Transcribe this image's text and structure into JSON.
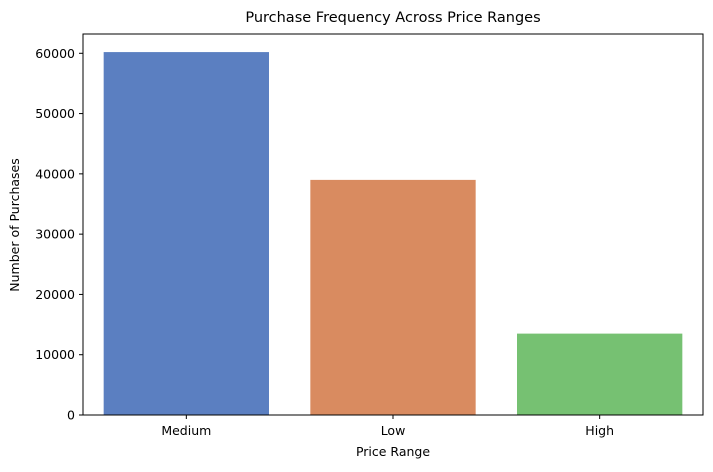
{
  "chart_data": {
    "type": "bar",
    "title": "Purchase Frequency Across Price Ranges",
    "xlabel": "Price Range",
    "ylabel": "Number of Purchases",
    "categories": [
      "Medium",
      "Low",
      "High"
    ],
    "values": [
      60200,
      39000,
      13500
    ],
    "colors": [
      "#5b7fc1",
      "#d98b60",
      "#76c172"
    ],
    "ylim": [
      0,
      63200
    ],
    "yticks": [
      0,
      10000,
      20000,
      30000,
      40000,
      50000,
      60000
    ],
    "grid": false,
    "legend": "none"
  }
}
